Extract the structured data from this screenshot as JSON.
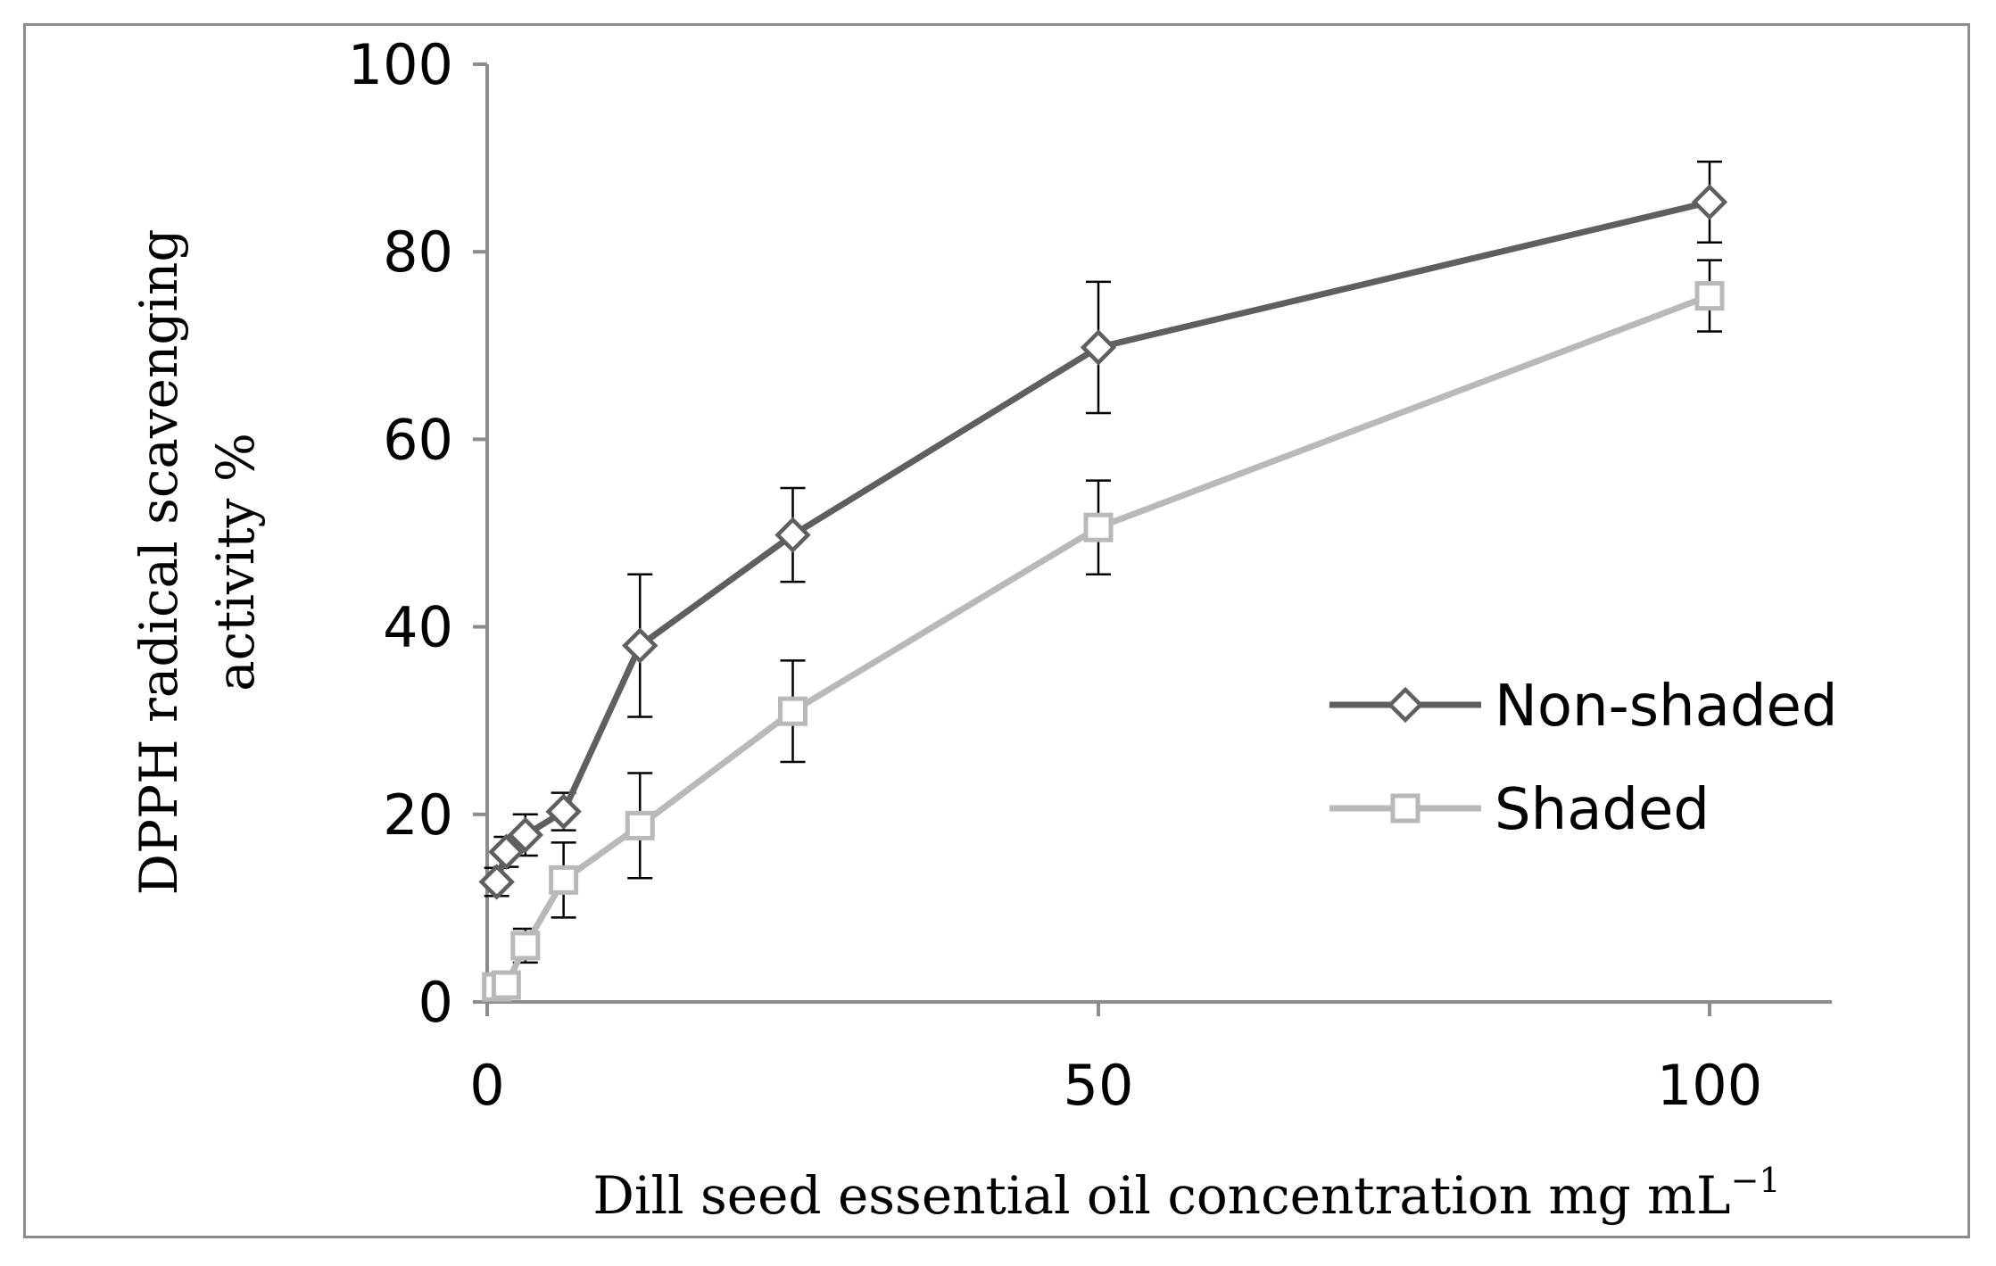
{
  "chart_data": {
    "type": "line",
    "title": "",
    "xlabel": "Dill seed essential oil concentration mg mL",
    "xlabel_superscript": "−1",
    "ylabel_line1": "DPPH radical scavenging",
    "ylabel_line2": "activity %",
    "xlim": [
      0,
      110
    ],
    "ylim": [
      0,
      100
    ],
    "x_ticks": [
      0,
      50,
      100
    ],
    "y_ticks": [
      0,
      20,
      40,
      60,
      80,
      100
    ],
    "grid": false,
    "legend_position": "right",
    "series": [
      {
        "name": "Non-shaded",
        "color": "#5f5f5f",
        "marker": "diamond",
        "x": [
          0.78,
          1.56,
          3.125,
          6.25,
          12.5,
          25,
          50,
          100
        ],
        "y": [
          12.8,
          16,
          17.8,
          20.3,
          38,
          49.8,
          69.8,
          85.3
        ],
        "err": [
          1.5,
          1.6,
          2.2,
          2.0,
          7.6,
          5.0,
          7.0,
          4.3
        ]
      },
      {
        "name": "Shaded",
        "color": "#b9b9b9",
        "marker": "square",
        "x": [
          0.78,
          1.56,
          3.125,
          6.25,
          12.5,
          25,
          50,
          100
        ],
        "y": [
          1.6,
          1.8,
          6,
          13,
          18.8,
          31,
          50.6,
          75.3
        ],
        "err": [
          0.8,
          1.0,
          1.8,
          4.0,
          5.6,
          5.4,
          5.0,
          3.8
        ]
      }
    ]
  }
}
